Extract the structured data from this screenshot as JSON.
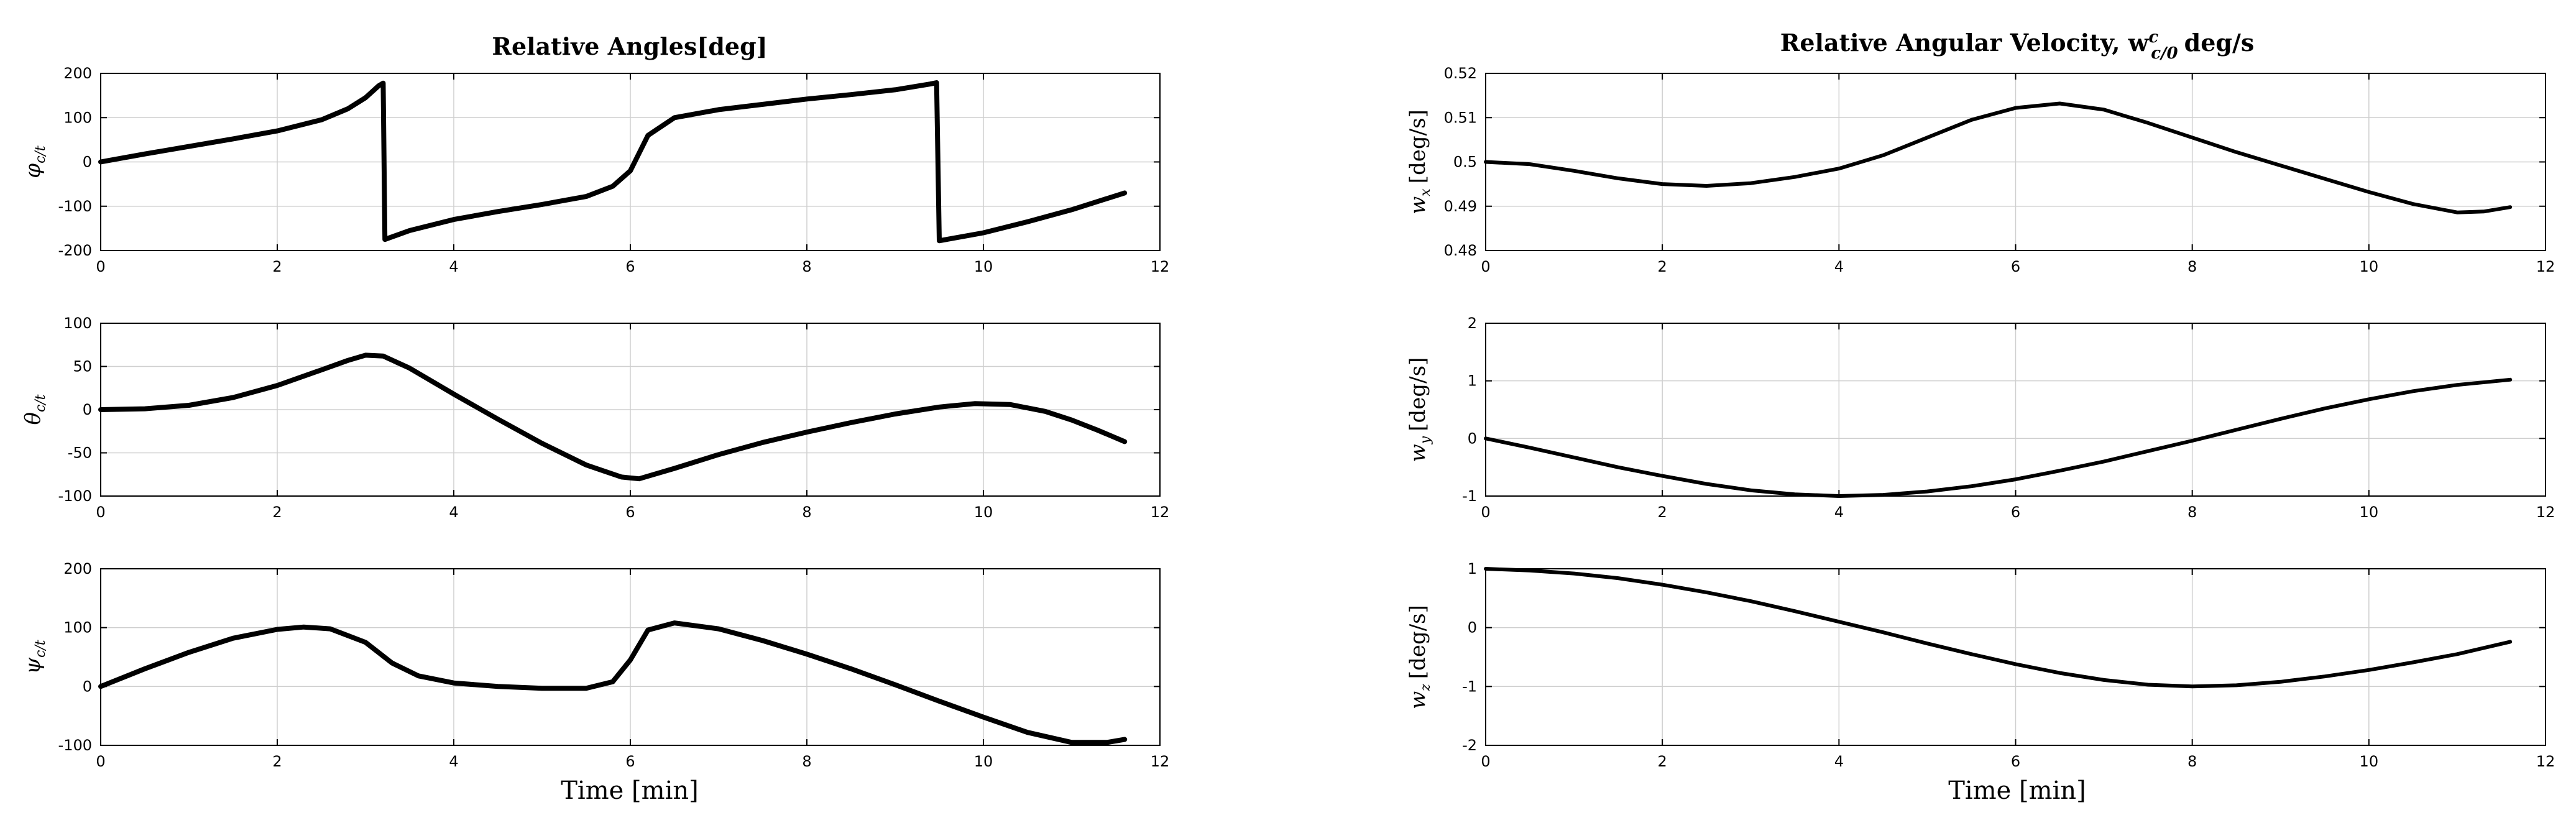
{
  "figure": {
    "left_title": "Relative Angles[deg]",
    "right_title": "Relative Angular Velocity, w",
    "right_title_sup": "c",
    "right_title_sub": "c/0",
    "right_title_unit": "deg/s",
    "xlabel": "Time [min]"
  },
  "chart_data": [
    {
      "type": "line",
      "ylabel_main": "φ",
      "ylabel_sub": "c/t",
      "ylabel_unit": "",
      "xlim": [
        0,
        12
      ],
      "ylim": [
        -200,
        200
      ],
      "xticks": [
        "0",
        "2",
        "4",
        "6",
        "8",
        "10",
        "12"
      ],
      "yticks": [
        "200",
        "100",
        "0",
        "-100",
        "-200"
      ],
      "grid": true,
      "x": [
        0,
        0.5,
        1,
        1.5,
        2,
        2.5,
        2.8,
        3.0,
        3.15,
        3.2,
        3.22,
        3.5,
        4.0,
        4.5,
        5.0,
        5.5,
        5.8,
        6.0,
        6.2,
        6.5,
        7.0,
        7.5,
        8.0,
        8.5,
        9.0,
        9.4,
        9.47,
        9.5,
        10.0,
        10.5,
        11.0,
        11.6
      ],
      "y": [
        0,
        18,
        35,
        52,
        70,
        95,
        120,
        145,
        172,
        178,
        -175,
        -155,
        -130,
        -112,
        -96,
        -78,
        -55,
        -20,
        60,
        100,
        118,
        130,
        142,
        152,
        163,
        176,
        179,
        -178,
        -160,
        -135,
        -108,
        -70
      ]
    },
    {
      "type": "line",
      "ylabel_main": "θ",
      "ylabel_sub": "c/t",
      "ylabel_unit": "",
      "xlim": [
        0,
        12
      ],
      "ylim": [
        -100,
        100
      ],
      "xticks": [
        "0",
        "2",
        "4",
        "6",
        "8",
        "10",
        "12"
      ],
      "yticks": [
        "100",
        "50",
        "0",
        "-50",
        "-100"
      ],
      "grid": true,
      "x": [
        0,
        0.5,
        1.0,
        1.5,
        2.0,
        2.5,
        2.8,
        3.0,
        3.2,
        3.5,
        4.0,
        4.5,
        5.0,
        5.5,
        5.9,
        6.1,
        6.5,
        7.0,
        7.5,
        8.0,
        8.5,
        9.0,
        9.5,
        9.9,
        10.3,
        10.7,
        11.0,
        11.3,
        11.6
      ],
      "y": [
        0,
        1,
        5,
        14,
        28,
        46,
        57,
        63,
        62,
        48,
        18,
        -11,
        -39,
        -64,
        -78,
        -80,
        -68,
        -52,
        -38,
        -26,
        -15,
        -5,
        3,
        7,
        6,
        -2,
        -12,
        -24,
        -37
      ]
    },
    {
      "type": "line",
      "ylabel_main": "ψ",
      "ylabel_sub": "c/t",
      "ylabel_unit": "",
      "xlim": [
        0,
        12
      ],
      "ylim": [
        -100,
        200
      ],
      "xticks": [
        "0",
        "2",
        "4",
        "6",
        "8",
        "10",
        "12"
      ],
      "yticks": [
        "200",
        "100",
        "0",
        "-100"
      ],
      "grid": true,
      "x": [
        0,
        0.5,
        1.0,
        1.5,
        2.0,
        2.3,
        2.6,
        3.0,
        3.3,
        3.6,
        4.0,
        4.5,
        5.0,
        5.5,
        5.8,
        6.0,
        6.2,
        6.5,
        7.0,
        7.5,
        8.0,
        8.5,
        9.0,
        9.5,
        10.0,
        10.5,
        11.0,
        11.4,
        11.6
      ],
      "y": [
        0,
        30,
        58,
        82,
        97,
        101,
        98,
        75,
        40,
        18,
        6,
        0,
        -3,
        -3,
        8,
        45,
        96,
        108,
        98,
        78,
        55,
        30,
        3,
        -25,
        -52,
        -78,
        -95,
        -95,
        -90
      ]
    },
    {
      "type": "line",
      "ylabel_main": "w",
      "ylabel_sub": "x",
      "ylabel_unit": "[deg/s]",
      "xlim": [
        0,
        12
      ],
      "ylim": [
        0.48,
        0.52
      ],
      "xticks": [
        "0",
        "2",
        "4",
        "6",
        "8",
        "10",
        "12"
      ],
      "yticks": [
        "0.52",
        "0.51",
        "0.5",
        "0.49",
        "0.48"
      ],
      "grid": true,
      "x": [
        0,
        0.5,
        1.0,
        1.5,
        2.0,
        2.5,
        3.0,
        3.5,
        4.0,
        4.5,
        5.0,
        5.5,
        6.0,
        6.5,
        7.0,
        7.5,
        8.0,
        8.5,
        9.0,
        9.5,
        10.0,
        10.5,
        11.0,
        11.3,
        11.6
      ],
      "y": [
        0.5,
        0.4995,
        0.498,
        0.4963,
        0.495,
        0.4946,
        0.4952,
        0.4966,
        0.4985,
        0.5015,
        0.5055,
        0.5095,
        0.5122,
        0.5132,
        0.5118,
        0.5088,
        0.5055,
        0.5022,
        0.4992,
        0.4962,
        0.4932,
        0.4905,
        0.4886,
        0.4888,
        0.4898
      ]
    },
    {
      "type": "line",
      "ylabel_main": "w",
      "ylabel_sub": "y",
      "ylabel_unit": "[deg/s]",
      "xlim": [
        0,
        12
      ],
      "ylim": [
        -1,
        2
      ],
      "xticks": [
        "0",
        "2",
        "4",
        "6",
        "8",
        "10",
        "12"
      ],
      "yticks": [
        "2",
        "1",
        "0",
        "-1"
      ],
      "grid": true,
      "x": [
        0,
        0.5,
        1.0,
        1.5,
        2.0,
        2.5,
        3.0,
        3.5,
        4.0,
        4.5,
        5.0,
        5.5,
        6.0,
        6.5,
        7.0,
        7.5,
        8.0,
        8.5,
        9.0,
        9.5,
        10.0,
        10.5,
        11.0,
        11.6
      ],
      "y": [
        0.0,
        -0.16,
        -0.33,
        -0.5,
        -0.65,
        -0.79,
        -0.9,
        -0.97,
        -1.0,
        -0.98,
        -0.92,
        -0.83,
        -0.71,
        -0.56,
        -0.4,
        -0.22,
        -0.04,
        0.15,
        0.34,
        0.52,
        0.68,
        0.82,
        0.93,
        1.02
      ]
    },
    {
      "type": "line",
      "ylabel_main": "w",
      "ylabel_sub": "z",
      "ylabel_unit": "[deg/s]",
      "xlim": [
        0,
        12
      ],
      "ylim": [
        -2,
        1
      ],
      "xticks": [
        "0",
        "2",
        "4",
        "6",
        "8",
        "10",
        "12"
      ],
      "yticks": [
        "1",
        "0",
        "-1",
        "-2"
      ],
      "grid": true,
      "x": [
        0,
        0.5,
        1.0,
        1.5,
        2.0,
        2.5,
        3.0,
        3.5,
        4.0,
        4.5,
        5.0,
        5.5,
        6.0,
        6.5,
        7.0,
        7.5,
        8.0,
        8.5,
        9.0,
        9.5,
        10.0,
        10.5,
        11.0,
        11.6
      ],
      "y": [
        1.0,
        0.97,
        0.92,
        0.84,
        0.73,
        0.6,
        0.45,
        0.28,
        0.1,
        -0.08,
        -0.27,
        -0.45,
        -0.62,
        -0.77,
        -0.89,
        -0.97,
        -1.0,
        -0.98,
        -0.92,
        -0.83,
        -0.72,
        -0.59,
        -0.45,
        -0.24
      ]
    }
  ]
}
